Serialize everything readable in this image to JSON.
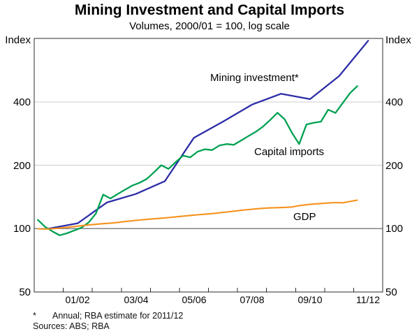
{
  "title": "Mining Investment and Capital Imports",
  "subtitle": "Volumes, 2000/01 = 100, log scale",
  "axes": {
    "left_unit": "Index",
    "right_unit": "Index",
    "y_tick_labels": [
      "400",
      "200",
      "100",
      "50"
    ],
    "x_tick_labels": [
      "01/02",
      "03/04",
      "05/06",
      "07/08",
      "09/10",
      "11/12"
    ]
  },
  "series_labels": {
    "mining": "Mining investment*",
    "imports": "Capital imports",
    "gdp": "GDP"
  },
  "footnotes": {
    "star": "*",
    "note": "Annual; RBA estimate for 2011/12",
    "sources": "Sources: ABS; RBA"
  },
  "colors": {
    "mining": "#2d2da8",
    "imports": "#00a152",
    "gdp": "#f6921e",
    "grid_light": "#cccccc",
    "grid_base": "#858585",
    "axis": "#2b2b2b"
  },
  "chart_data": {
    "type": "line",
    "log_scale": true,
    "index_base": "2000/01 = 100",
    "ylim": [
      50,
      800
    ],
    "y_ticks": [
      50,
      100,
      200,
      400
    ],
    "gridlines": {
      "light": [
        400,
        200
      ],
      "dark": [
        100
      ]
    },
    "x_years": [
      "00/01",
      "01/02",
      "02/03",
      "03/04",
      "04/05",
      "05/06",
      "06/07",
      "07/08",
      "08/09",
      "09/10",
      "10/11",
      "11/12"
    ],
    "series": [
      {
        "name": "Mining investment",
        "note": "Annual; RBA estimate for 2011/12",
        "freq": "annual",
        "color_key": "mining",
        "width": 2.3,
        "values": [
          100,
          106,
          133,
          146,
          168,
          270,
          322,
          388,
          437,
          412,
          530,
          780
        ]
      },
      {
        "name": "Capital imports",
        "freq": "quarterly",
        "start_quarter": "Sep-2000",
        "end_quarter": "Sep-2011",
        "color_key": "imports",
        "width": 2.3,
        "values": [
          110,
          102,
          97,
          93,
          95,
          98,
          101,
          107,
          118,
          145,
          139,
          146,
          153,
          160,
          165,
          172,
          185,
          200,
          192,
          207,
          222,
          218,
          232,
          238,
          236,
          248,
          252,
          250,
          262,
          275,
          288,
          305,
          328,
          355,
          330,
          285,
          252,
          312,
          318,
          322,
          367,
          354,
          395,
          440,
          475
        ]
      },
      {
        "name": "GDP",
        "freq": "quarterly",
        "start_quarter": "Sep-2000",
        "end_quarter": "Sep-2011",
        "color_key": "gdp",
        "width": 2.1,
        "values": [
          99.8,
          99.4,
          99.9,
          100.6,
          101.4,
          102.3,
          103.2,
          104,
          104.8,
          105.5,
          106.2,
          107,
          108,
          109,
          109.8,
          110.6,
          111.3,
          112,
          112.8,
          113.7,
          114.6,
          115.5,
          116.3,
          117,
          117.8,
          118.8,
          119.9,
          121,
          122.1,
          123.1,
          124,
          124.8,
          125.4,
          125.7,
          126.1,
          126.7,
          128.5,
          129.8,
          130.8,
          131.6,
          132.3,
          132.9,
          132.6,
          134.5,
          136.5
        ]
      }
    ]
  }
}
